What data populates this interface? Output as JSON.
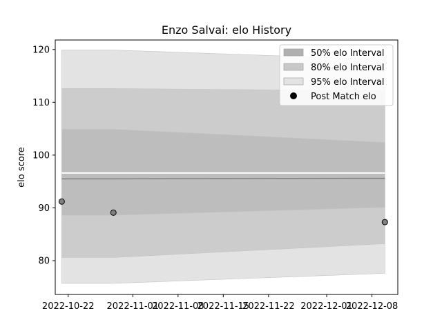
{
  "chart_data": {
    "type": "area",
    "title": "Enzo Salvai: elo History",
    "xlabel": "",
    "ylabel": "elo score",
    "x_axis": {
      "type": "date",
      "range": [
        "2022-10-20",
        "2022-12-12"
      ]
    },
    "xticks": [
      "2022-10-22",
      "2022-11-01",
      "2022-11-08",
      "2022-11-15",
      "2022-11-22",
      "2022-12-01",
      "2022-12-08"
    ],
    "ylim": [
      73.6,
      121.8
    ],
    "yticks": [
      80,
      90,
      100,
      110,
      120
    ],
    "grid": false,
    "legend_position": "top-right",
    "x": [
      "2022-10-21",
      "2022-10-29",
      "2022-12-10"
    ],
    "center_line": {
      "color": "#808080",
      "values": [
        95.5,
        95.5,
        95.6
      ]
    },
    "separator_line": {
      "color": "#ffffff",
      "values": [
        96.6,
        96.6,
        96.6
      ]
    },
    "bands": [
      {
        "name": "95% elo Interval",
        "color": "#e3e3e3",
        "upper": [
          119.9,
          119.9,
          118.1
        ],
        "lower": [
          75.7,
          75.7,
          77.6
        ]
      },
      {
        "name": "80% elo Interval",
        "color": "#cccccc",
        "upper": [
          112.6,
          112.6,
          112.2
        ],
        "lower": [
          80.6,
          80.6,
          83.2
        ]
      },
      {
        "name": "50% elo Interval",
        "color": "#bdbdbd",
        "upper": [
          104.9,
          104.9,
          102.4
        ],
        "lower": [
          88.6,
          88.6,
          90.1
        ]
      }
    ],
    "legend": [
      {
        "label": "50% elo Interval",
        "kind": "band",
        "color": "#b0b0b0"
      },
      {
        "label": "80% elo Interval",
        "kind": "band",
        "color": "#c8c8c8"
      },
      {
        "label": "95% elo Interval",
        "kind": "band",
        "color": "#e3e3e3"
      },
      {
        "label": "Post Match elo",
        "kind": "marker",
        "color": "#000000"
      }
    ],
    "points": {
      "name": "Post Match elo",
      "color": "#808080",
      "x": [
        "2022-10-21",
        "2022-10-29",
        "2022-12-10"
      ],
      "y": [
        91.2,
        89.1,
        87.3
      ]
    }
  }
}
